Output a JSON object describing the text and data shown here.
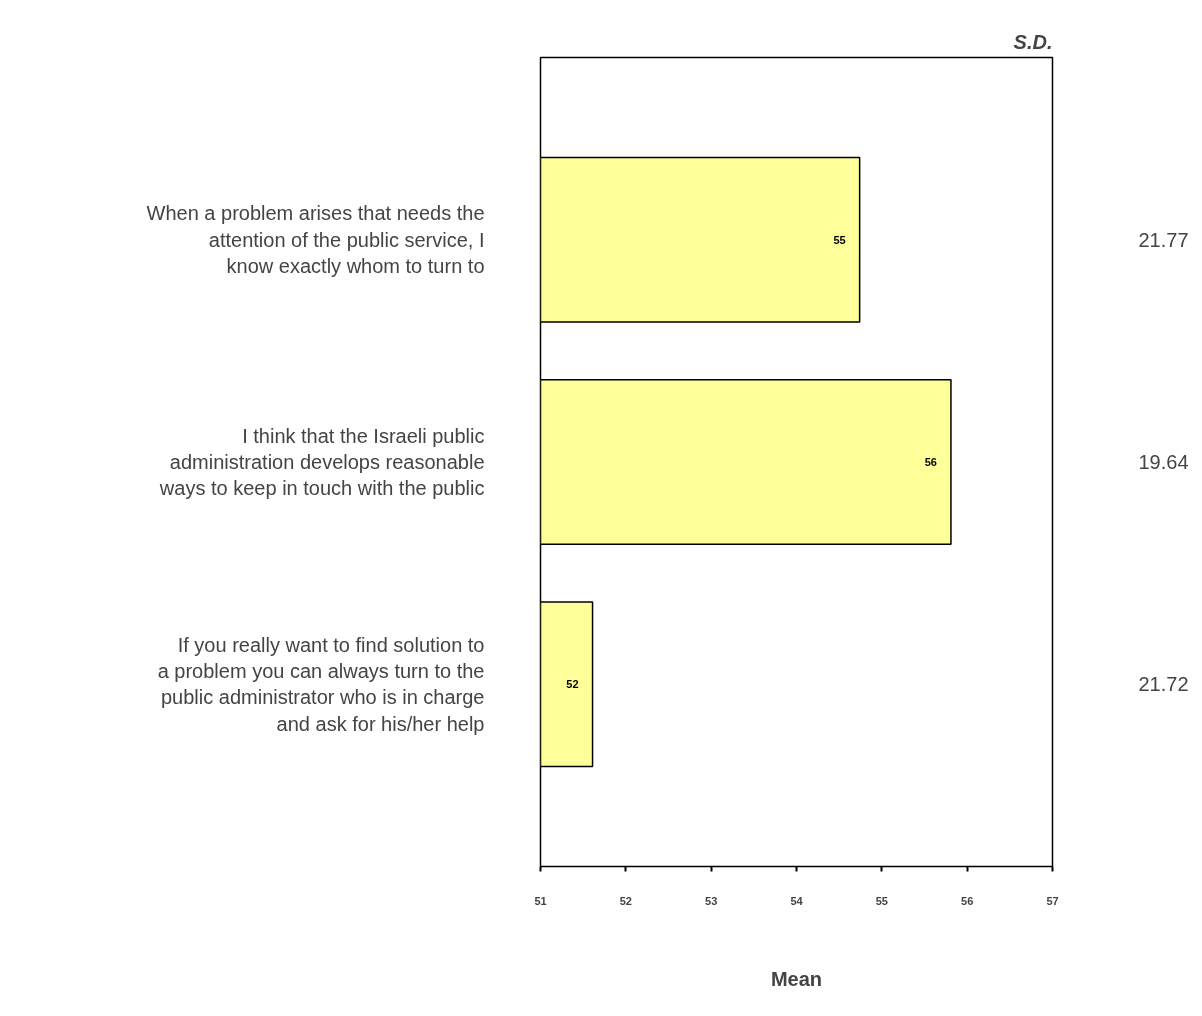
{
  "chart_data": {
    "type": "bar",
    "orientation": "horizontal",
    "color": "#ffff99",
    "categories": [
      "When a problem arises that needs the attention of the public service, I know exactly whom to turn to",
      "I think that the Israeli public administration develops reasonable ways to keep in touch with the public",
      "If you really want to find solution to a problem you can always turn to the public administrator who is in charge and ask for his/her help"
    ],
    "values": [
      54.74,
      55.81,
      51.61
    ],
    "value_labels": [
      "55",
      "56",
      "52"
    ],
    "xlim": [
      51,
      57
    ],
    "xticks": [
      51,
      52,
      53,
      54,
      55,
      56,
      57
    ],
    "xlabel": "Mean",
    "annotations": [
      "S.D.",
      "21.77",
      "19.64",
      "21.72"
    ]
  }
}
